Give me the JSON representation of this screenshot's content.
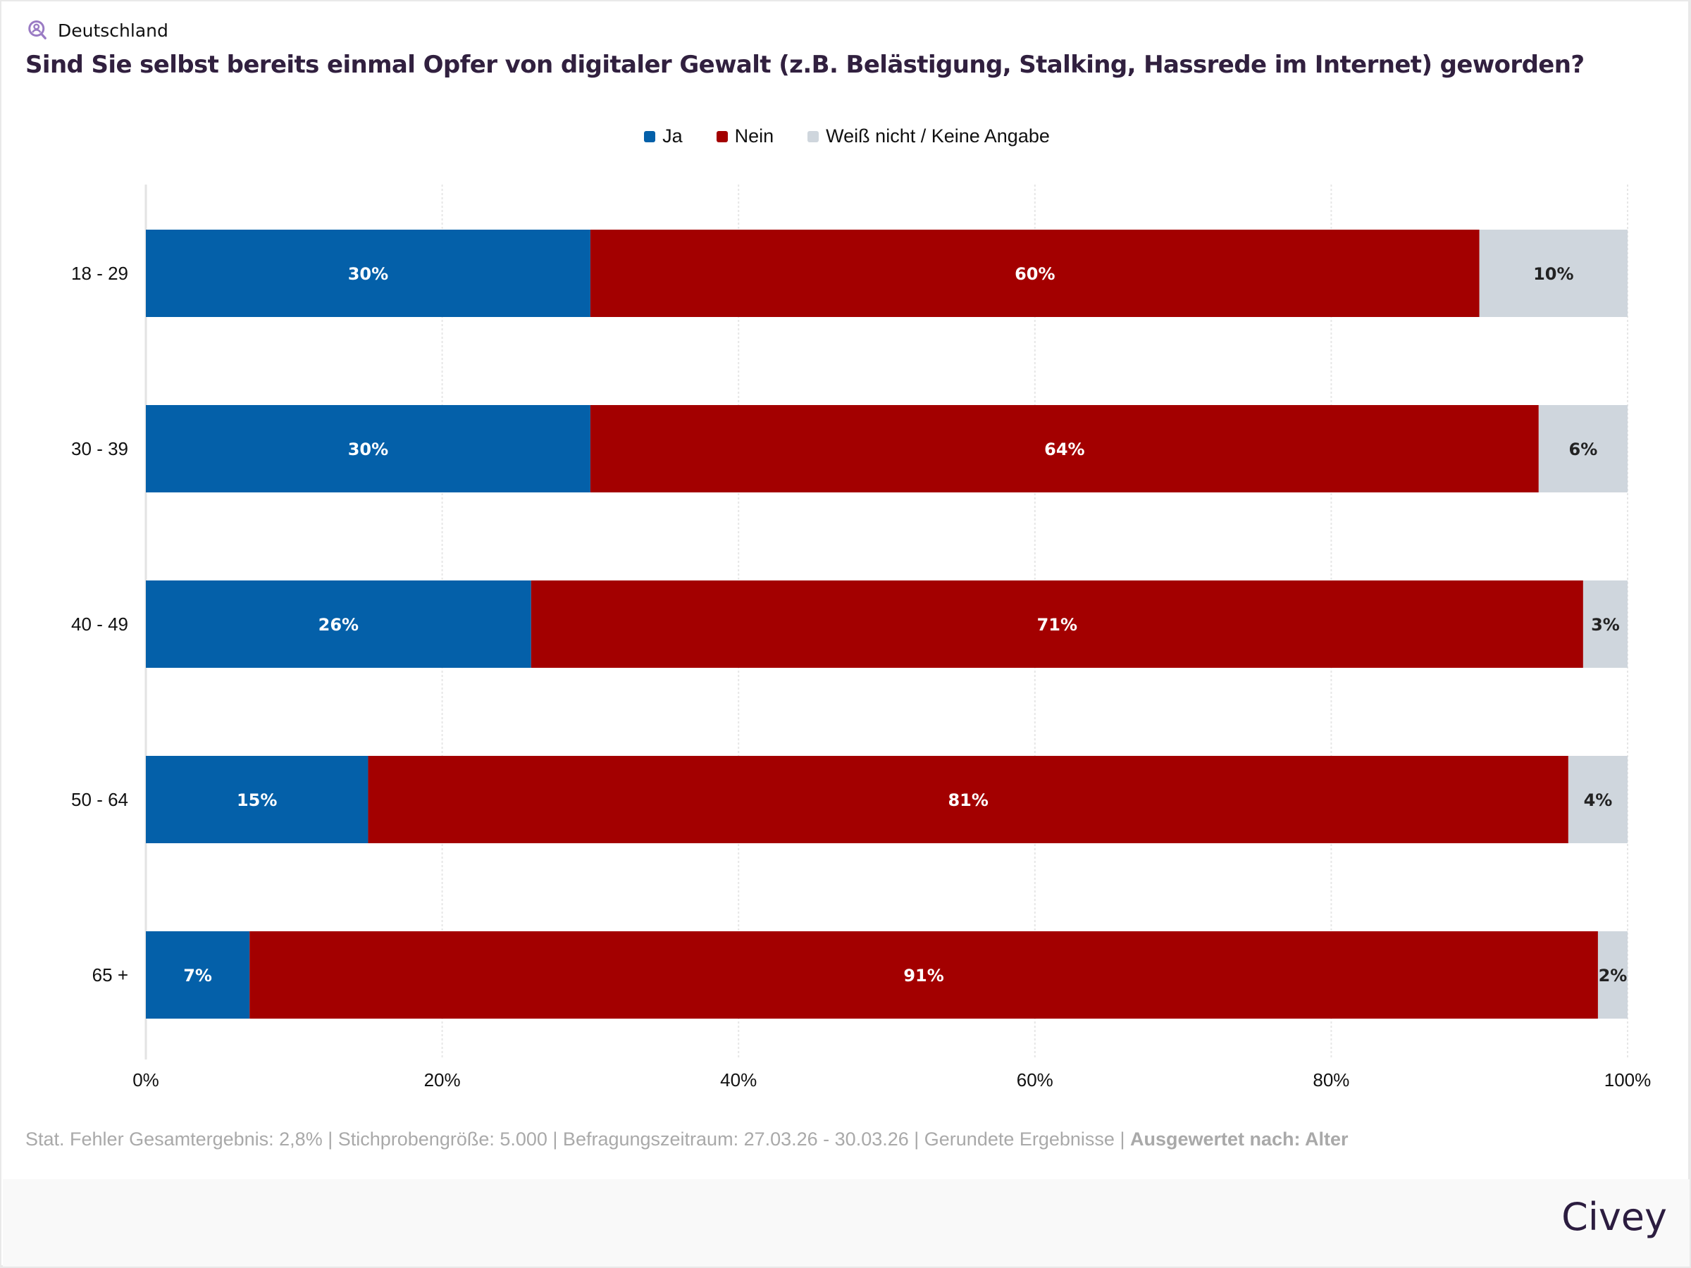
{
  "header": {
    "region_icon": "location-person-search-icon",
    "region": "Deutschland",
    "question": "Sind Sie selbst bereits einmal Opfer von digitaler Gewalt (z.B. Belästigung, Stalking, Hassrede im Internet) geworden?"
  },
  "colors": {
    "ja": "#0460a9",
    "nein": "#a30000",
    "weiss_nicht": "#cfd6dd",
    "title": "#31203f",
    "icon": "#9a7bc4"
  },
  "chart_data": {
    "type": "bar",
    "orientation": "horizontal",
    "stacked": true,
    "title": "Sind Sie selbst bereits einmal Opfer von digitaler Gewalt (z.B. Belästigung, Stalking, Hassrede im Internet) geworden?",
    "xlabel": "",
    "ylabel": "",
    "xlim": [
      0,
      100
    ],
    "x_ticks": [
      "0%",
      "20%",
      "40%",
      "60%",
      "80%",
      "100%"
    ],
    "grid": true,
    "legend_position": "top-center",
    "categories": [
      "18 - 29",
      "30 - 39",
      "40 - 49",
      "50 - 64",
      "65 +"
    ],
    "series": [
      {
        "name": "Ja",
        "color": "#0460a9",
        "values": [
          30,
          30,
          26,
          15,
          7
        ],
        "labels": [
          "30%",
          "30%",
          "26%",
          "15%",
          "7%"
        ]
      },
      {
        "name": "Nein",
        "color": "#a30000",
        "values": [
          60,
          64,
          71,
          81,
          91
        ],
        "labels": [
          "60%",
          "64%",
          "71%",
          "81%",
          "91%"
        ]
      },
      {
        "name": "Weiß nicht / Keine Angabe",
        "color": "#cfd6dd",
        "values": [
          10,
          6,
          3,
          4,
          2
        ],
        "labels": [
          "10%",
          "6%",
          "3%",
          "4%",
          "2%"
        ]
      }
    ]
  },
  "footer": {
    "note": "Stat. Fehler Gesamtergebnis: 2,8% | Stichprobengröße: 5.000 | Befragungszeitraum: 27.03.26 - 30.03.26 | Gerundete Ergebnisse | ",
    "evaluated_by": "Ausgewertet nach: Alter",
    "brand": "Civey"
  }
}
